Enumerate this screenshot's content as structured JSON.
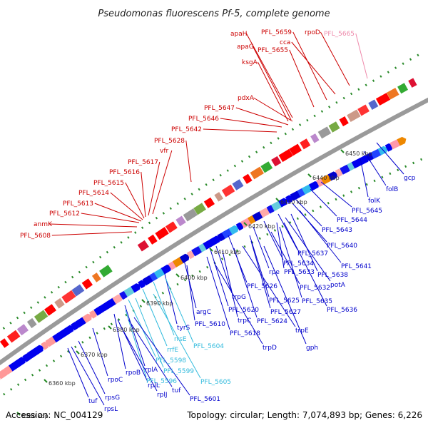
{
  "title": "Pseudomonas fluorescens Pf-5, complete genome",
  "footer": {
    "accession": "Accession: NC_004129",
    "topology": "Topology: circular; Length: 7,074,893 bp; Genes: 6,226"
  },
  "colors": {
    "upper_label": "#cc0000",
    "lower_label": "#0000cc",
    "cyan_label": "#33bbdd",
    "pink_label": "#ee88aa",
    "backbone": "#888888",
    "tick_dots": "#228822",
    "gene_red": "#ff0000",
    "gene_blue": "#0000ee"
  },
  "kbp_ticks": [
    "6350 kbp",
    "6360 kbp",
    "6370 kbp",
    "6380 kbp",
    "6390 kbp",
    "6400 kbp",
    "6410 kbp",
    "6420 kbp",
    "6430 kbp",
    "6440 kbp",
    "6450 kbp"
  ],
  "upper_labels": [
    "PFL_5659",
    "rpoD",
    "PFL_5665",
    "apaH",
    "cca",
    "apaG",
    "PFL_5655",
    "ksgA",
    "pdxA",
    "PFL_5647",
    "PFL_5646",
    "PFL_5642",
    "PFL_5628",
    "vfr",
    "PFL_5617",
    "PFL_5616",
    "PFL_5615",
    "PFL_5614",
    "PFL_5613",
    "PFL_5612",
    "anmK",
    "PFL_5608"
  ],
  "lower_labels": [
    "gcp",
    "folB",
    "folK",
    "PFL_5645",
    "PFL_5644",
    "PFL_5643",
    "PFL_5640",
    "PFL_5637",
    "PFL_5641",
    "PFL_5638",
    "PFL_5634",
    "rpe",
    "PFL_5633",
    "potA",
    "PFL_5632",
    "PFL_5626",
    "PFL_5625",
    "PFL_5635",
    "PFL_5636",
    "PFL_5627",
    "trpG",
    "PFL_5620",
    "PFL_5624",
    "trpC",
    "trpE",
    "argC",
    "PFL_5610",
    "PFL_5618",
    "tyrS",
    "gph",
    "trpD",
    "rrsE",
    "PFL_5604",
    "rrfE",
    "PFL_5598",
    "rplA",
    "PFL_5599",
    "rpoB",
    "PFL_5596",
    "PFL_5605",
    "rpoC",
    "rplL",
    "tuf",
    "rplJ",
    "PFL_5601",
    "rpsG",
    "tuf",
    "rpsL"
  ]
}
